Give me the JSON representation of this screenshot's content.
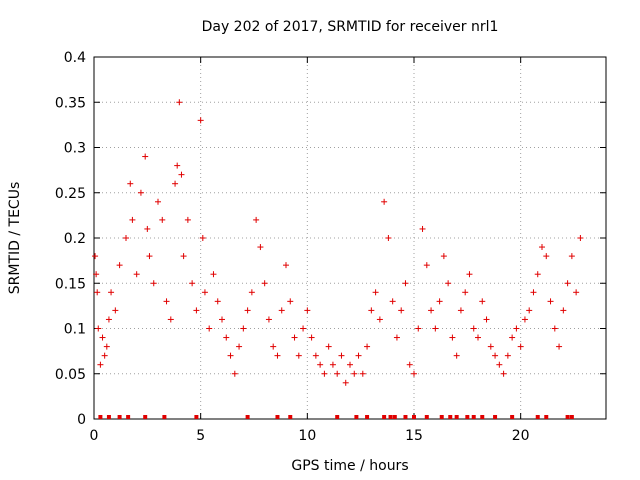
{
  "chart_data": {
    "type": "scatter",
    "title": "Day 202 of 2017, SRMTID for receiver nrl1",
    "xlabel": "GPS time / hours",
    "ylabel": "SRMTID / TECUs",
    "xlim": [
      0,
      24
    ],
    "ylim": [
      0,
      0.4
    ],
    "x_ticks": [
      0,
      5,
      10,
      15,
      20
    ],
    "x_tick_labels": [
      "0",
      "5",
      "10",
      "15",
      "20"
    ],
    "y_ticks": [
      0,
      0.05,
      0.1,
      0.15,
      0.2,
      0.25,
      0.3,
      0.35,
      0.4
    ],
    "y_tick_labels": [
      "0",
      "0.05",
      "0.1",
      "0.15",
      "0.2",
      "0.25",
      "0.3",
      "0.35",
      "0.4"
    ],
    "grid": true,
    "marker": "+",
    "color": "#e00000",
    "series": [
      {
        "name": "SRMTID",
        "x": [
          0.05,
          0.1,
          0.15,
          0.2,
          0.3,
          0.4,
          0.5,
          0.6,
          0.7,
          0.8,
          1.0,
          1.2,
          1.5,
          1.7,
          1.8,
          2.0,
          2.2,
          2.4,
          2.5,
          2.6,
          2.8,
          3.0,
          3.2,
          3.4,
          3.6,
          3.8,
          3.9,
          4.0,
          4.1,
          4.2,
          4.4,
          4.6,
          4.8,
          5.0,
          5.1,
          5.2,
          5.4,
          5.6,
          5.8,
          6.0,
          6.2,
          6.4,
          6.6,
          6.8,
          7.0,
          7.2,
          7.4,
          7.6,
          7.8,
          8.0,
          8.2,
          8.4,
          8.6,
          8.8,
          9.0,
          9.2,
          9.4,
          9.6,
          9.8,
          10.0,
          10.2,
          10.4,
          10.6,
          10.8,
          11.0,
          11.2,
          11.4,
          11.6,
          11.8,
          12.0,
          12.2,
          12.4,
          12.6,
          12.8,
          13.0,
          13.2,
          13.4,
          13.6,
          13.8,
          14.0,
          14.2,
          14.4,
          14.6,
          14.8,
          15.0,
          15.2,
          15.4,
          15.6,
          15.8,
          16.0,
          16.2,
          16.4,
          16.6,
          16.8,
          17.0,
          17.2,
          17.4,
          17.6,
          17.8,
          18.0,
          18.2,
          18.4,
          18.6,
          18.8,
          19.0,
          19.2,
          19.4,
          19.6,
          19.8,
          20.0,
          20.2,
          20.4,
          20.6,
          20.8,
          21.0,
          21.2,
          21.4,
          21.6,
          21.8,
          22.0,
          22.2,
          22.4,
          22.6,
          22.8
        ],
        "y": [
          0.18,
          0.16,
          0.14,
          0.1,
          0.06,
          0.09,
          0.07,
          0.08,
          0.11,
          0.14,
          0.12,
          0.17,
          0.2,
          0.26,
          0.22,
          0.16,
          0.25,
          0.29,
          0.21,
          0.18,
          0.15,
          0.24,
          0.22,
          0.13,
          0.11,
          0.26,
          0.28,
          0.35,
          0.27,
          0.18,
          0.22,
          0.15,
          0.12,
          0.33,
          0.2,
          0.14,
          0.1,
          0.16,
          0.13,
          0.11,
          0.09,
          0.07,
          0.05,
          0.08,
          0.1,
          0.12,
          0.14,
          0.22,
          0.19,
          0.15,
          0.11,
          0.08,
          0.07,
          0.12,
          0.17,
          0.13,
          0.09,
          0.07,
          0.1,
          0.12,
          0.09,
          0.07,
          0.06,
          0.05,
          0.08,
          0.06,
          0.05,
          0.07,
          0.04,
          0.06,
          0.05,
          0.07,
          0.05,
          0.08,
          0.12,
          0.14,
          0.11,
          0.24,
          0.2,
          0.13,
          0.09,
          0.12,
          0.15,
          0.06,
          0.05,
          0.1,
          0.21,
          0.17,
          0.12,
          0.1,
          0.13,
          0.18,
          0.15,
          0.09,
          0.07,
          0.12,
          0.14,
          0.16,
          0.1,
          0.09,
          0.13,
          0.11,
          0.08,
          0.07,
          0.06,
          0.05,
          0.07,
          0.09,
          0.1,
          0.08,
          0.11,
          0.12,
          0.14,
          0.16,
          0.19,
          0.18,
          0.13,
          0.1,
          0.08,
          0.12,
          0.15,
          0.18,
          0.14,
          0.2
        ]
      }
    ],
    "gap_markers_x": [
      0.3,
      0.7,
      1.2,
      1.6,
      2.4,
      3.3,
      4.8,
      7.2,
      8.6,
      9.2,
      11.4,
      12.3,
      12.8,
      13.6,
      13.9,
      14.1,
      14.6,
      15.0,
      15.6,
      16.3,
      16.7,
      17.0,
      17.5,
      17.8,
      18.2,
      18.8,
      19.6,
      20.8,
      21.2,
      22.2,
      22.4
    ]
  }
}
